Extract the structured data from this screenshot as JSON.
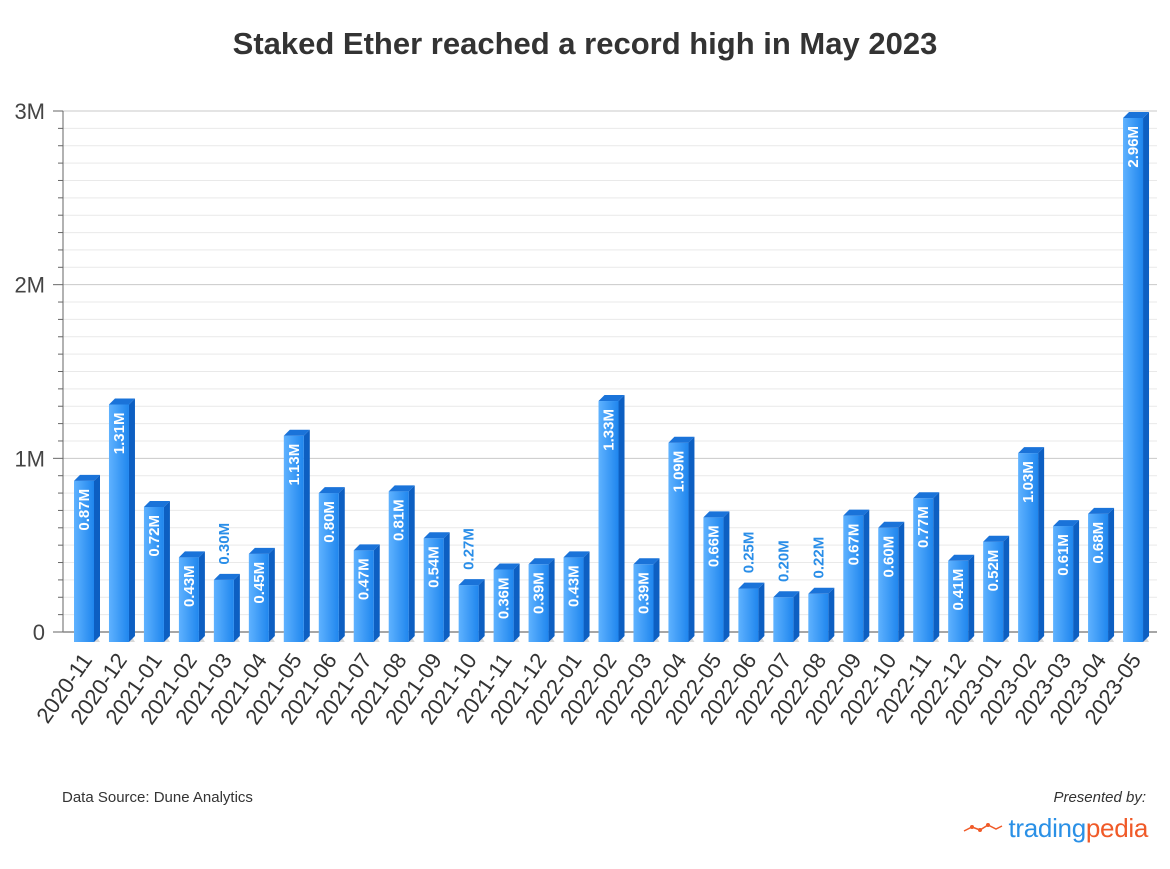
{
  "chart_data": {
    "type": "bar",
    "title": "Staked Ether reached a record high in May 2023",
    "xlabel": "",
    "ylabel": "",
    "ylim": [
      0,
      3000000
    ],
    "y_ticks": [
      {
        "value": 0,
        "label": "0"
      },
      {
        "value": 1000000,
        "label": "1M"
      },
      {
        "value": 2000000,
        "label": "2M"
      },
      {
        "value": 3000000,
        "label": "3M"
      }
    ],
    "grid": true,
    "legend": "none",
    "bar_color": "#2e8ef0",
    "categories": [
      "2020-11",
      "2020-12",
      "2021-01",
      "2021-02",
      "2021-03",
      "2021-04",
      "2021-05",
      "2021-06",
      "2021-07",
      "2021-08",
      "2021-09",
      "2021-10",
      "2021-11",
      "2021-12",
      "2022-01",
      "2022-02",
      "2022-03",
      "2022-04",
      "2022-05",
      "2022-06",
      "2022-07",
      "2022-08",
      "2022-09",
      "2022-10",
      "2022-11",
      "2022-12",
      "2023-01",
      "2023-02",
      "2023-03",
      "2023-04",
      "2023-05"
    ],
    "values": [
      870000,
      1310000,
      720000,
      430000,
      300000,
      450000,
      1130000,
      800000,
      470000,
      810000,
      540000,
      270000,
      360000,
      390000,
      430000,
      1330000,
      390000,
      1090000,
      660000,
      250000,
      200000,
      220000,
      670000,
      600000,
      770000,
      410000,
      520000,
      1030000,
      610000,
      680000,
      2960000
    ],
    "data_labels": [
      "0.87M",
      "1.31M",
      "0.72M",
      "0.43M",
      "0.30M",
      "0.45M",
      "1.13M",
      "0.80M",
      "0.47M",
      "0.81M",
      "0.54M",
      "0.27M",
      "0.36M",
      "0.39M",
      "0.43M",
      "1.33M",
      "0.39M",
      "1.09M",
      "0.66M",
      "0.25M",
      "0.20M",
      "0.22M",
      "0.67M",
      "0.60M",
      "0.77M",
      "0.41M",
      "0.52M",
      "1.03M",
      "0.61M",
      "0.68M",
      "2.96M"
    ]
  },
  "footer": {
    "source": "Data Source: Dune Analytics",
    "presented_by": "Presented by:",
    "brand_part1": "trading",
    "brand_part2": "pedia"
  }
}
